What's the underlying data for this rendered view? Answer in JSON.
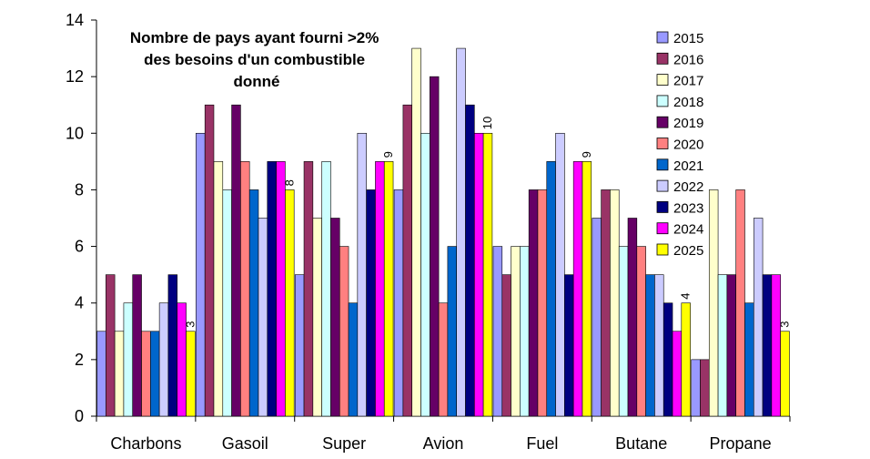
{
  "chart_data": {
    "type": "bar",
    "title_lines": [
      "Nombre de pays ayant fourni >2%",
      "des besoins d'un combustible",
      "donné"
    ],
    "categories": [
      "Charbons",
      "Gasoil",
      "Super",
      "Avion",
      "Fuel",
      "Butane",
      "Propane"
    ],
    "ylim": [
      0,
      14
    ],
    "yticks": [
      "0",
      "2",
      "4",
      "6",
      "8",
      "10",
      "12",
      "14"
    ],
    "grid": false,
    "legend_position": "top-right",
    "series": [
      {
        "name": "2015",
        "color": "#9999ff",
        "values": [
          3,
          10,
          5,
          8,
          6,
          7,
          2
        ]
      },
      {
        "name": "2016",
        "color": "#993366",
        "values": [
          5,
          11,
          9,
          11,
          5,
          8,
          2
        ]
      },
      {
        "name": "2017",
        "color": "#ffffcc",
        "values": [
          3,
          9,
          7,
          13,
          6,
          8,
          8
        ]
      },
      {
        "name": "2018",
        "color": "#ccffff",
        "values": [
          4,
          8,
          9,
          10,
          6,
          6,
          5
        ]
      },
      {
        "name": "2019",
        "color": "#660066",
        "values": [
          5,
          11,
          7,
          12,
          8,
          7,
          5
        ]
      },
      {
        "name": "2020",
        "color": "#ff8080",
        "values": [
          3,
          9,
          6,
          4,
          8,
          6,
          8
        ]
      },
      {
        "name": "2021",
        "color": "#0066cc",
        "values": [
          3,
          8,
          4,
          6,
          9,
          5,
          4
        ]
      },
      {
        "name": "2022",
        "color": "#ccccff",
        "values": [
          4,
          7,
          10,
          13,
          10,
          5,
          7
        ]
      },
      {
        "name": "2023",
        "color": "#000080",
        "values": [
          5,
          9,
          8,
          11,
          5,
          4,
          5
        ]
      },
      {
        "name": "2024",
        "color": "#ff00ff",
        "values": [
          4,
          9,
          9,
          10,
          9,
          3,
          5
        ]
      },
      {
        "name": "2025",
        "color": "#ffff00",
        "values": [
          3,
          8,
          9,
          10,
          9,
          4,
          3
        ]
      }
    ],
    "data_labels": [
      {
        "series": "2025",
        "category": "Charbons",
        "text": "3"
      },
      {
        "series": "2025",
        "category": "Gasoil",
        "text": "8"
      },
      {
        "series": "2025",
        "category": "Super",
        "text": "9"
      },
      {
        "series": "2025",
        "category": "Avion",
        "text": "10"
      },
      {
        "series": "2025",
        "category": "Fuel",
        "text": "9"
      },
      {
        "series": "2025",
        "category": "Butane",
        "text": "4"
      },
      {
        "series": "2025",
        "category": "Propane",
        "text": "3"
      }
    ]
  }
}
